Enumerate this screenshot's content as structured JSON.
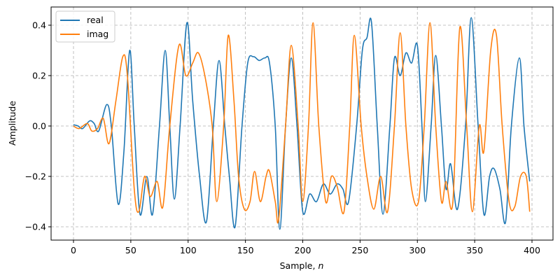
{
  "chart_data": {
    "type": "line",
    "title": "",
    "xlabel": "Sample, n",
    "ylabel": "Amplitude",
    "xlim": [
      -20,
      420
    ],
    "ylim": [
      -0.46,
      0.47
    ],
    "xticks": [
      0,
      50,
      100,
      150,
      200,
      250,
      300,
      350,
      400
    ],
    "yticks": [
      -0.4,
      -0.2,
      0.0,
      0.2,
      0.4
    ],
    "ytick_labels": [
      "−0.4",
      "−0.2",
      "0.0",
      "0.2",
      "0.4"
    ],
    "grid": true,
    "legend_position": "upper left",
    "series": [
      {
        "name": "real",
        "color": "#1f77b4",
        "points": [
          [
            0,
            0.005
          ],
          [
            4,
            0.0
          ],
          [
            8,
            -0.01
          ],
          [
            14,
            0.02
          ],
          [
            18,
            0.01
          ],
          [
            22,
            -0.02
          ],
          [
            29,
            0.085
          ],
          [
            33,
            0.0
          ],
          [
            39,
            -0.31
          ],
          [
            44,
            -0.1
          ],
          [
            49,
            0.3
          ],
          [
            53,
            0.0
          ],
          [
            58,
            -0.35
          ],
          [
            64,
            -0.2
          ],
          [
            69,
            -0.35
          ],
          [
            75,
            0.0
          ],
          [
            80,
            0.3
          ],
          [
            84,
            0.0
          ],
          [
            88,
            -0.29
          ],
          [
            93,
            0.0
          ],
          [
            99,
            0.41
          ],
          [
            104,
            0.1
          ],
          [
            110,
            -0.2
          ],
          [
            116,
            -0.38
          ],
          [
            122,
            0.0
          ],
          [
            127,
            0.26
          ],
          [
            132,
            0.0
          ],
          [
            136,
            -0.2
          ],
          [
            141,
            -0.4
          ],
          [
            147,
            0.0
          ],
          [
            152,
            0.25
          ],
          [
            157,
            0.275
          ],
          [
            162,
            0.26
          ],
          [
            167,
            0.27
          ],
          [
            171,
            0.25
          ],
          [
            176,
            0.0
          ],
          [
            180,
            -0.41
          ],
          [
            185,
            0.0
          ],
          [
            190,
            0.27
          ],
          [
            195,
            0.0
          ],
          [
            200,
            -0.34
          ],
          [
            206,
            -0.27
          ],
          [
            212,
            -0.3
          ],
          [
            218,
            -0.23
          ],
          [
            224,
            -0.27
          ],
          [
            230,
            -0.23
          ],
          [
            235,
            -0.25
          ],
          [
            240,
            -0.3
          ],
          [
            247,
            0.0
          ],
          [
            252,
            0.3
          ],
          [
            256,
            0.35
          ],
          [
            260,
            0.41
          ],
          [
            265,
            0.0
          ],
          [
            270,
            -0.35
          ],
          [
            276,
            0.0
          ],
          [
            280,
            0.27
          ],
          [
            285,
            0.2
          ],
          [
            290,
            0.29
          ],
          [
            295,
            0.25
          ],
          [
            300,
            0.32
          ],
          [
            304,
            0.0
          ],
          [
            307,
            -0.3
          ],
          [
            312,
            0.0
          ],
          [
            316,
            0.28
          ],
          [
            321,
            0.0
          ],
          [
            325,
            -0.25
          ],
          [
            329,
            -0.15
          ],
          [
            335,
            -0.33
          ],
          [
            342,
            0.0
          ],
          [
            347,
            0.43
          ],
          [
            353,
            0.0
          ],
          [
            358,
            -0.35
          ],
          [
            363,
            -0.2
          ],
          [
            367,
            -0.17
          ],
          [
            372,
            -0.25
          ],
          [
            377,
            -0.38
          ],
          [
            382,
            0.0
          ],
          [
            389,
            0.27
          ],
          [
            393,
            0.0
          ],
          [
            398,
            -0.22
          ]
        ]
      },
      {
        "name": "imag",
        "color": "#ff7f0e",
        "points": [
          [
            0,
            0.0
          ],
          [
            5,
            -0.01
          ],
          [
            12,
            0.01
          ],
          [
            16,
            -0.02
          ],
          [
            21,
            -0.01
          ],
          [
            26,
            0.03
          ],
          [
            31,
            -0.07
          ],
          [
            37,
            0.1
          ],
          [
            43,
            0.275
          ],
          [
            47,
            0.2
          ],
          [
            53,
            -0.25
          ],
          [
            57,
            -0.34
          ],
          [
            62,
            -0.2
          ],
          [
            67,
            -0.28
          ],
          [
            73,
            -0.22
          ],
          [
            78,
            -0.32
          ],
          [
            84,
            0.0
          ],
          [
            92,
            0.32
          ],
          [
            98,
            0.2
          ],
          [
            104,
            0.25
          ],
          [
            109,
            0.29
          ],
          [
            115,
            0.19
          ],
          [
            121,
            0.0
          ],
          [
            125,
            -0.3
          ],
          [
            131,
            0.0
          ],
          [
            135,
            0.36
          ],
          [
            140,
            0.1
          ],
          [
            144,
            -0.2
          ],
          [
            149,
            -0.33
          ],
          [
            154,
            -0.3
          ],
          [
            158,
            -0.18
          ],
          [
            163,
            -0.3
          ],
          [
            168,
            -0.2
          ],
          [
            171,
            -0.18
          ],
          [
            176,
            -0.3
          ],
          [
            179,
            -0.37
          ],
          [
            185,
            0.0
          ],
          [
            190,
            0.32
          ],
          [
            196,
            0.0
          ],
          [
            200,
            -0.3
          ],
          [
            205,
            0.0
          ],
          [
            209,
            0.41
          ],
          [
            214,
            0.0
          ],
          [
            220,
            -0.3
          ],
          [
            225,
            -0.2
          ],
          [
            230,
            -0.24
          ],
          [
            236,
            -0.34
          ],
          [
            241,
            0.0
          ],
          [
            245,
            0.36
          ],
          [
            251,
            0.0
          ],
          [
            256,
            -0.2
          ],
          [
            262,
            -0.33
          ],
          [
            268,
            -0.2
          ],
          [
            274,
            -0.34
          ],
          [
            280,
            0.0
          ],
          [
            285,
            0.37
          ],
          [
            290,
            0.0
          ],
          [
            295,
            -0.25
          ],
          [
            301,
            -0.3
          ],
          [
            306,
            0.0
          ],
          [
            311,
            0.41
          ],
          [
            316,
            0.0
          ],
          [
            321,
            -0.3
          ],
          [
            325,
            -0.22
          ],
          [
            331,
            -0.3
          ],
          [
            337,
            0.39
          ],
          [
            343,
            0.0
          ],
          [
            348,
            -0.34
          ],
          [
            354,
            0.0
          ],
          [
            358,
            -0.1
          ],
          [
            364,
            0.3
          ],
          [
            369,
            0.36
          ],
          [
            374,
            0.0
          ],
          [
            380,
            -0.3
          ],
          [
            385,
            -0.32
          ],
          [
            390,
            -0.2
          ],
          [
            395,
            -0.2
          ],
          [
            398,
            -0.34
          ]
        ]
      }
    ]
  }
}
